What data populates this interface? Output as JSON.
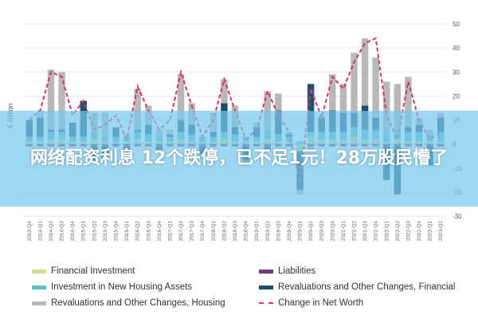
{
  "banner": {
    "headline": "网络配资利息 12个跌停，已不足1元！28万股民懵了"
  },
  "legend": {
    "items": [
      {
        "label": "Financial Investment",
        "color": "#cde28a",
        "kind": "bar"
      },
      {
        "label": "Liabilities",
        "color": "#6b3a78",
        "kind": "bar"
      },
      {
        "label": "Investment in New Housing Assets",
        "color": "#5cc1c9",
        "kind": "bar"
      },
      {
        "label": "Revaluations and Other Changes, Financial",
        "color": "#1c4f6b",
        "kind": "bar"
      },
      {
        "label": "Revaluations and Other Changes, Housing",
        "color": "#b8b8b8",
        "kind": "bar"
      },
      {
        "label": "Change in Net Worth",
        "color": "#d6336c",
        "kind": "line"
      }
    ]
  },
  "chart_data": {
    "type": "bar",
    "stacked": true,
    "ylabel": "€ Billion",
    "ylim": [
      -30,
      50
    ],
    "yticks": [
      -30,
      -20,
      -10,
      0,
      10,
      20,
      30,
      40,
      50
    ],
    "y_axis_position": "right",
    "categories": [
      "2013-Q4",
      "2014-Q1",
      "2014-Q2",
      "2014-Q3",
      "2014-Q4",
      "2015-Q1",
      "2015-Q2",
      "2015-Q3",
      "2015-Q4",
      "2016-Q1",
      "2016-Q2",
      "2016-Q3",
      "2016-Q4",
      "2017-Q1",
      "2017-Q2",
      "2017-Q3",
      "2017-Q4",
      "2018-Q1",
      "2018-Q2",
      "2018-Q3",
      "2018-Q4",
      "2019-Q1",
      "2019-Q2",
      "2019-Q3",
      "2019-Q4",
      "2020-Q1",
      "2020-Q2",
      "2020-Q3",
      "2020-Q4",
      "2021-Q1",
      "2021-Q2",
      "2021-Q3",
      "2021-Q4",
      "2022-Q1",
      "2022-Q2",
      "2022-Q3",
      "2022-Q4",
      "2023-Q1",
      "2023-Q2"
    ],
    "series": [
      {
        "name": "Financial Investment",
        "color": "#cde28a",
        "values": [
          1,
          1,
          2,
          2,
          1,
          1,
          2,
          1,
          1,
          1,
          2,
          1,
          1,
          1,
          2,
          1,
          1,
          1,
          2,
          1,
          1,
          1,
          2,
          1,
          1,
          -3,
          3,
          2,
          2,
          2,
          3,
          2,
          2,
          1,
          2,
          1,
          1,
          1,
          1
        ]
      },
      {
        "name": "Liabilities",
        "color": "#6b3a78",
        "values": [
          -1,
          -1,
          -1,
          -1,
          -1,
          -1,
          -1,
          -1,
          -1,
          -1,
          -1,
          -1,
          -1,
          -1,
          -1,
          -1,
          -1,
          -1,
          -1,
          -1,
          -1,
          -1,
          -1,
          -1,
          -1,
          -1,
          -1,
          -1,
          -1,
          -1,
          -1,
          -1,
          -1,
          -1,
          -1,
          -1,
          -1,
          -1,
          -1
        ]
      },
      {
        "name": "Investment in New Housing Assets",
        "color": "#5cc1c9",
        "values": [
          2,
          2,
          3,
          3,
          2,
          2,
          3,
          2,
          2,
          2,
          3,
          3,
          2,
          2,
          3,
          3,
          2,
          2,
          3,
          3,
          2,
          2,
          3,
          3,
          2,
          1,
          2,
          3,
          3,
          3,
          4,
          4,
          4,
          3,
          4,
          4,
          4,
          3,
          4
        ]
      },
      {
        "name": "Revaluations and Other Changes, Financial",
        "color": "#1c4f6b",
        "values": [
          7,
          8,
          1,
          1,
          6,
          15,
          -6,
          -5,
          4,
          -3,
          1,
          4,
          -2,
          1,
          5,
          4,
          -3,
          2,
          12,
          3,
          -6,
          4,
          -2,
          10,
          1,
          -15,
          20,
          6,
          9,
          8,
          6,
          10,
          5,
          -14,
          -20,
          2,
          3,
          -8,
          6
        ]
      },
      {
        "name": "Revaluations and Other Changes, Housing",
        "color": "#b8b8b8",
        "values": [
          0,
          3,
          25,
          24,
          0,
          0,
          8,
          10,
          0,
          1,
          17,
          8,
          3,
          2,
          19,
          9,
          -2,
          8,
          10,
          9,
          -2,
          2,
          17,
          7,
          1,
          -2,
          -2,
          1,
          15,
          12,
          25,
          28,
          25,
          22,
          19,
          21,
          3,
          2,
          2
        ]
      }
    ],
    "line": {
      "name": "Change in Net Worth",
      "color": "#d6336c",
      "values": [
        10,
        14,
        30,
        28,
        12,
        18,
        6,
        8,
        12,
        2,
        24,
        14,
        6,
        10,
        30,
        16,
        3,
        10,
        27,
        14,
        2,
        6,
        22,
        12,
        5,
        -16,
        23,
        11,
        28,
        23,
        34,
        42,
        44,
        12,
        2,
        26,
        10,
        2,
        5
      ]
    },
    "legend_position": "bottom"
  }
}
